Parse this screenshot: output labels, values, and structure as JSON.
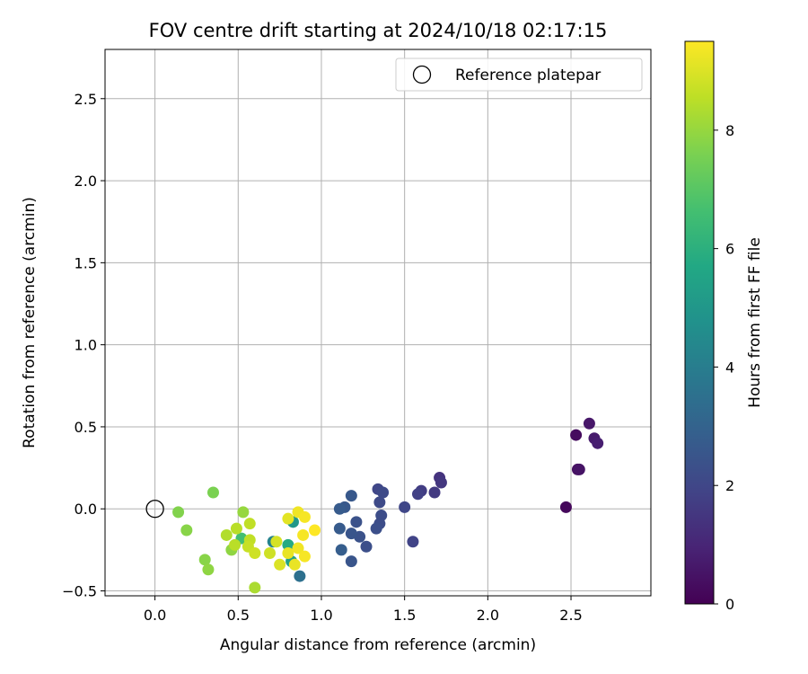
{
  "chart_data": {
    "type": "scatter",
    "title": "FOV centre drift starting at 2024/10/18 02:17:15",
    "xlabel": "Angular distance from reference (arcmin)",
    "ylabel": "Rotation from reference (arcmin)",
    "xlim": [
      -0.3,
      2.98
    ],
    "ylim": [
      -0.53,
      2.8
    ],
    "xticks": [
      "0.0",
      "0.5",
      "1.0",
      "1.5",
      "2.0",
      "2.5"
    ],
    "yticks": [
      "−0.5",
      "0.0",
      "0.5",
      "1.0",
      "1.5",
      "2.0",
      "2.5"
    ],
    "grid": true,
    "legend": {
      "placement": "top-right",
      "label": "Reference platepar"
    },
    "reference_point": {
      "x": 0.0,
      "y": 0.0
    },
    "colorbar": {
      "label": "Hours from first FF file",
      "colormap": "viridis",
      "range": [
        0,
        9.5
      ],
      "ticks": [
        "0",
        "2",
        "4",
        "6",
        "8"
      ]
    },
    "points": [
      {
        "x": 2.47,
        "y": 0.01,
        "h": 0.2
      },
      {
        "x": 2.53,
        "y": 0.45,
        "h": 0.3
      },
      {
        "x": 2.54,
        "y": 0.24,
        "h": 0.4
      },
      {
        "x": 2.55,
        "y": 0.24,
        "h": 0.5
      },
      {
        "x": 2.61,
        "y": 0.52,
        "h": 0.6
      },
      {
        "x": 2.64,
        "y": 0.43,
        "h": 0.7
      },
      {
        "x": 2.66,
        "y": 0.4,
        "h": 0.8
      },
      {
        "x": 1.71,
        "y": 0.19,
        "h": 1.4
      },
      {
        "x": 1.72,
        "y": 0.16,
        "h": 1.5
      },
      {
        "x": 1.68,
        "y": 0.1,
        "h": 1.6
      },
      {
        "x": 1.6,
        "y": 0.11,
        "h": 1.7
      },
      {
        "x": 1.58,
        "y": 0.09,
        "h": 1.8
      },
      {
        "x": 1.55,
        "y": -0.2,
        "h": 1.9
      },
      {
        "x": 1.5,
        "y": 0.01,
        "h": 2.0
      },
      {
        "x": 1.34,
        "y": 0.12,
        "h": 2.0
      },
      {
        "x": 1.37,
        "y": 0.1,
        "h": 2.1
      },
      {
        "x": 1.35,
        "y": 0.04,
        "h": 2.1
      },
      {
        "x": 1.36,
        "y": -0.04,
        "h": 2.2
      },
      {
        "x": 1.35,
        "y": -0.09,
        "h": 2.2
      },
      {
        "x": 1.33,
        "y": -0.12,
        "h": 2.3
      },
      {
        "x": 1.27,
        "y": -0.23,
        "h": 2.3
      },
      {
        "x": 1.23,
        "y": -0.17,
        "h": 2.4
      },
      {
        "x": 1.21,
        "y": -0.08,
        "h": 2.4
      },
      {
        "x": 1.18,
        "y": -0.15,
        "h": 2.5
      },
      {
        "x": 1.18,
        "y": -0.32,
        "h": 2.5
      },
      {
        "x": 1.18,
        "y": 0.08,
        "h": 2.6
      },
      {
        "x": 1.14,
        "y": 0.01,
        "h": 2.6
      },
      {
        "x": 1.11,
        "y": 0.0,
        "h": 2.7
      },
      {
        "x": 1.11,
        "y": -0.12,
        "h": 2.7
      },
      {
        "x": 1.12,
        "y": -0.25,
        "h": 2.8
      },
      {
        "x": 0.87,
        "y": -0.41,
        "h": 3.5
      },
      {
        "x": 0.71,
        "y": -0.2,
        "h": 4.2
      },
      {
        "x": 0.52,
        "y": -0.18,
        "h": 6.6
      },
      {
        "x": 0.83,
        "y": -0.08,
        "h": 5.0
      },
      {
        "x": 0.82,
        "y": -0.32,
        "h": 5.4
      },
      {
        "x": 0.8,
        "y": -0.22,
        "h": 5.8
      },
      {
        "x": 0.35,
        "y": 0.1,
        "h": 7.6
      },
      {
        "x": 0.14,
        "y": -0.02,
        "h": 7.7
      },
      {
        "x": 0.19,
        "y": -0.13,
        "h": 7.8
      },
      {
        "x": 0.3,
        "y": -0.31,
        "h": 7.8
      },
      {
        "x": 0.32,
        "y": -0.37,
        "h": 7.9
      },
      {
        "x": 0.46,
        "y": -0.25,
        "h": 7.9
      },
      {
        "x": 0.53,
        "y": -0.02,
        "h": 8.0
      },
      {
        "x": 0.6,
        "y": -0.48,
        "h": 8.3
      },
      {
        "x": 0.43,
        "y": -0.16,
        "h": 8.4
      },
      {
        "x": 0.48,
        "y": -0.22,
        "h": 8.5
      },
      {
        "x": 0.49,
        "y": -0.12,
        "h": 8.5
      },
      {
        "x": 0.57,
        "y": -0.09,
        "h": 8.6
      },
      {
        "x": 0.57,
        "y": -0.19,
        "h": 8.6
      },
      {
        "x": 0.56,
        "y": -0.23,
        "h": 8.7
      },
      {
        "x": 0.6,
        "y": -0.27,
        "h": 8.8
      },
      {
        "x": 0.69,
        "y": -0.27,
        "h": 8.8
      },
      {
        "x": 0.73,
        "y": -0.2,
        "h": 8.9
      },
      {
        "x": 0.75,
        "y": -0.34,
        "h": 9.0
      },
      {
        "x": 0.8,
        "y": -0.06,
        "h": 9.1
      },
      {
        "x": 0.8,
        "y": -0.27,
        "h": 9.2
      },
      {
        "x": 0.84,
        "y": -0.34,
        "h": 9.2
      },
      {
        "x": 0.86,
        "y": -0.24,
        "h": 9.3
      },
      {
        "x": 0.86,
        "y": -0.02,
        "h": 9.3
      },
      {
        "x": 0.89,
        "y": -0.16,
        "h": 9.4
      },
      {
        "x": 0.9,
        "y": -0.05,
        "h": 9.4
      },
      {
        "x": 0.9,
        "y": -0.29,
        "h": 9.4
      },
      {
        "x": 0.96,
        "y": -0.13,
        "h": 9.5
      }
    ]
  }
}
